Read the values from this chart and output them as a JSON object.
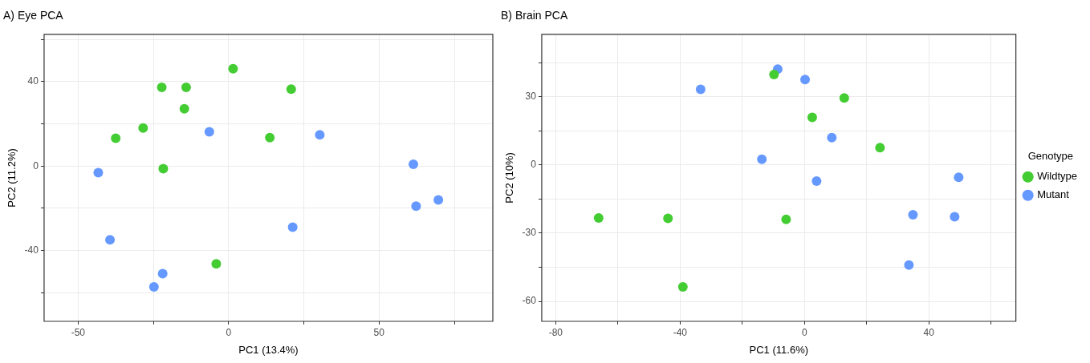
{
  "chart_data": [
    {
      "type": "scatter",
      "title": "A) Eye PCA",
      "xlabel": "PC1 (13.4%)",
      "ylabel": "PC2 (11.2%)",
      "marker": "circle",
      "grid": true,
      "legend": false,
      "xlim": [
        -61.3,
        87.8
      ],
      "xticks": [
        -50,
        {
          "value": -25,
          "label": null
        },
        0,
        {
          "value": 25,
          "label": null
        },
        50,
        {
          "value": 75,
          "label": null
        }
      ],
      "ylim": [
        -73.5,
        62.4
      ],
      "yticks": [
        {
          "value": -60,
          "label": null
        },
        -40,
        {
          "value": -20,
          "label": null
        },
        0,
        {
          "value": 20,
          "label": null
        },
        40,
        {
          "value": 60,
          "label": null
        }
      ],
      "series": [
        {
          "color": "#44cc33",
          "x": [
            1.5,
            -22.2,
            -14.1,
            20.8,
            -14.7,
            -28.4,
            -37.5,
            13.7,
            -21.7,
            -4.1
          ],
          "values": [
            46.1,
            37.3,
            37.3,
            36.4,
            27.1,
            18.0,
            13.2,
            13.5,
            -1.2,
            -46.3
          ]
        },
        {
          "color": "#6699ff",
          "x": [
            -6.4,
            30.3,
            -43.3,
            61.4,
            62.3,
            69.7,
            21.3,
            -39.4,
            -21.9,
            -24.8
          ],
          "values": [
            16.2,
            14.8,
            -3.1,
            0.9,
            -19.0,
            -16.0,
            -28.9,
            -34.9,
            -50.9,
            -57.2
          ]
        }
      ]
    },
    {
      "type": "scatter",
      "title": "B) Brain PCA",
      "xlabel": "PC1 (11.6%)",
      "ylabel": "PC2 (10%)",
      "legend_title": "Genotype",
      "marker": "circle",
      "grid": true,
      "legend": "right",
      "xlim": [
        -84.5,
        68.0
      ],
      "xticks": [
        -80,
        {
          "value": -60,
          "label": null
        },
        -40,
        {
          "value": -20,
          "label": null
        },
        0,
        {
          "value": 20,
          "label": null
        },
        40,
        {
          "value": 60,
          "label": null
        }
      ],
      "ylim": [
        -68.8,
        57.5
      ],
      "yticks": [
        -60,
        {
          "value": -45,
          "label": null
        },
        -30,
        {
          "value": -15,
          "label": null
        },
        0,
        {
          "value": 15,
          "label": null
        },
        30,
        {
          "value": 45,
          "label": null
        }
      ],
      "series": [
        {
          "name": "Wildtype",
          "color": "#44cc33",
          "x": [
            -9.8,
            12.8,
            2.5,
            24.3,
            -66.2,
            -43.9,
            -5.9,
            -39.1
          ],
          "values": [
            39.8,
            29.5,
            20.9,
            7.6,
            -23.3,
            -23.5,
            -23.9,
            -53.6
          ]
        },
        {
          "name": "Mutant",
          "color": "#6699ff",
          "x": [
            -8.6,
            0.2,
            -33.4,
            8.8,
            -13.7,
            3.9,
            49.6,
            34.9,
            48.3,
            33.6
          ],
          "values": [
            42.2,
            37.6,
            33.3,
            12.0,
            2.5,
            -7.1,
            -5.4,
            -21.9,
            -22.8,
            -44.0
          ]
        }
      ]
    }
  ]
}
